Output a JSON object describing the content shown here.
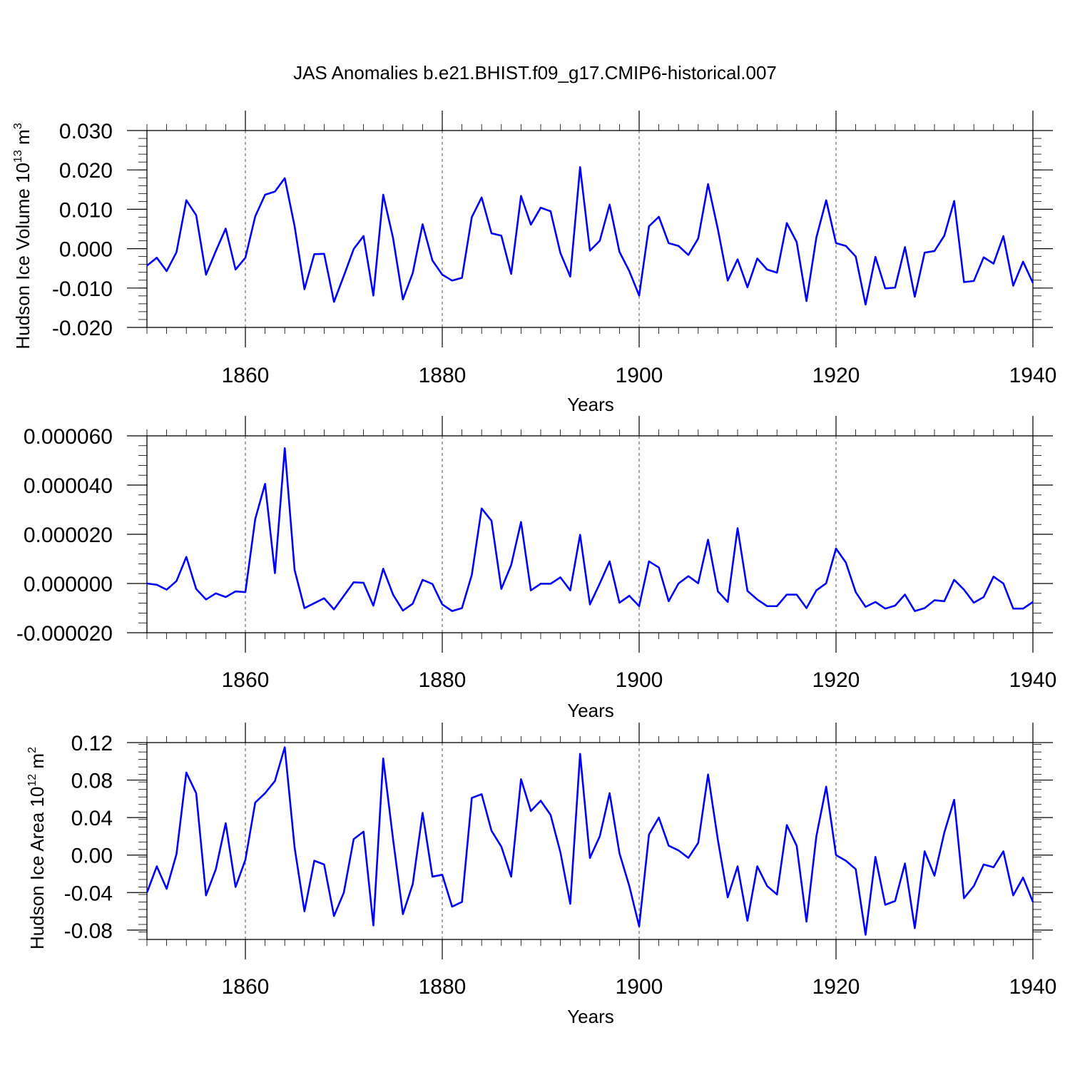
{
  "figure": {
    "title": "JAS Anomalies b.e21.BHIST.f09_g17.CMIP6-historical.007"
  },
  "chart_data": [
    {
      "type": "line",
      "title": "",
      "xlabel": "Years",
      "ylabel": "Hudson Ice Volume 10",
      "ylabel_sup": "13",
      "ylabel_unit": " m",
      "ylabel_unit_sup": "3",
      "xlim": [
        1850,
        1940
      ],
      "ylim": [
        -0.02,
        0.03
      ],
      "xticks": [
        1860,
        1880,
        1900,
        1920,
        1940
      ],
      "xtick_labels": [
        "1860",
        "1880",
        "1900",
        "1920",
        "1940"
      ],
      "yticks": [
        -0.02,
        -0.01,
        0.0,
        0.01,
        0.02,
        0.03
      ],
      "ytick_labels": [
        "-0.020",
        "-0.010",
        "0.000",
        "0.010",
        "0.020",
        "0.030"
      ],
      "grid": "vertical dashed at major x ticks",
      "color": "#0000ff",
      "series": [
        {
          "x": [
            1850,
            1851,
            1852,
            1853,
            1854,
            1855,
            1856,
            1857,
            1858,
            1859,
            1860,
            1861,
            1862,
            1863,
            1864,
            1865,
            1866,
            1867,
            1868,
            1869,
            1870,
            1871,
            1872,
            1873,
            1874,
            1875,
            1876,
            1877,
            1878,
            1879,
            1880,
            1881,
            1882,
            1883,
            1884,
            1885,
            1886,
            1887,
            1888,
            1889,
            1890,
            1891,
            1892,
            1893,
            1894,
            1895,
            1896,
            1897,
            1898,
            1899,
            1900,
            1901,
            1902,
            1903,
            1904,
            1905,
            1906,
            1907,
            1908,
            1909,
            1910,
            1911,
            1912,
            1913,
            1914,
            1915,
            1916,
            1917,
            1918,
            1919,
            1920,
            1921,
            1922,
            1923,
            1924,
            1925,
            1926,
            1927,
            1928,
            1929,
            1930,
            1931,
            1932,
            1933,
            1934,
            1935,
            1936,
            1937,
            1938,
            1939,
            1940
          ],
          "values": [
            -0.0043,
            -0.0023,
            -0.0057,
            -0.0009,
            0.0123,
            0.0085,
            -0.0066,
            -0.0006,
            0.0051,
            -0.0053,
            -0.0023,
            0.0082,
            0.0137,
            0.0145,
            0.0179,
            0.0057,
            -0.0103,
            -0.0014,
            -0.0013,
            -0.0135,
            -0.0069,
            -0.0001,
            0.0032,
            -0.0119,
            0.0137,
            0.0027,
            -0.0129,
            -0.0062,
            0.0062,
            -0.003,
            -0.0066,
            -0.0081,
            -0.0074,
            0.008,
            0.013,
            0.0039,
            0.0033,
            -0.0064,
            0.0134,
            0.0061,
            0.0104,
            0.0095,
            -0.0011,
            -0.0071,
            0.0207,
            -0.0005,
            0.002,
            0.0112,
            -0.0008,
            -0.0057,
            -0.0119,
            0.0057,
            0.0081,
            0.0014,
            0.0007,
            -0.0016,
            0.0026,
            0.0164,
            0.0049,
            -0.0081,
            -0.0027,
            -0.0098,
            -0.0025,
            -0.0053,
            -0.0061,
            0.0065,
            0.0017,
            -0.0133,
            0.0028,
            0.0123,
            0.0014,
            0.0007,
            -0.002,
            -0.0142,
            -0.0021,
            -0.0101,
            -0.0099,
            0.0004,
            -0.0122,
            -0.001,
            -0.0006,
            0.0033,
            0.0121,
            -0.0085,
            -0.0082,
            -0.0022,
            -0.0038,
            0.0032,
            -0.0094,
            -0.0033,
            -0.0087
          ]
        }
      ]
    },
    {
      "type": "line",
      "title": "",
      "xlabel": "Years",
      "ylabel": "",
      "ylabel_sup": "",
      "ylabel_unit": "",
      "ylabel_unit_sup": "",
      "xlim": [
        1850,
        1940
      ],
      "ylim": [
        -2e-05,
        6e-05
      ],
      "xticks": [
        1860,
        1880,
        1900,
        1920,
        1940
      ],
      "xtick_labels": [
        "1860",
        "1880",
        "1900",
        "1920",
        "1940"
      ],
      "yticks": [
        -2e-05,
        0.0,
        2e-05,
        4e-05,
        6e-05
      ],
      "ytick_labels": [
        "-0.000020",
        "0.000000",
        "0.000020",
        "0.000040",
        "0.000060"
      ],
      "grid": "vertical dashed at major x ticks",
      "color": "#0000ff",
      "series": [
        {
          "x": [
            1850,
            1851,
            1852,
            1853,
            1854,
            1855,
            1856,
            1857,
            1858,
            1859,
            1860,
            1861,
            1862,
            1863,
            1864,
            1865,
            1866,
            1867,
            1868,
            1869,
            1870,
            1871,
            1872,
            1873,
            1874,
            1875,
            1876,
            1877,
            1878,
            1879,
            1880,
            1881,
            1882,
            1883,
            1884,
            1885,
            1886,
            1887,
            1888,
            1889,
            1890,
            1891,
            1892,
            1893,
            1894,
            1895,
            1896,
            1897,
            1898,
            1899,
            1900,
            1901,
            1902,
            1903,
            1904,
            1905,
            1906,
            1907,
            1908,
            1909,
            1910,
            1911,
            1912,
            1913,
            1914,
            1915,
            1916,
            1917,
            1918,
            1919,
            1920,
            1921,
            1922,
            1923,
            1924,
            1925,
            1926,
            1927,
            1928,
            1929,
            1930,
            1931,
            1932,
            1933,
            1934,
            1935,
            1936,
            1937,
            1938,
            1939,
            1940
          ],
          "values": [
            0.0,
            -5e-07,
            -2.5e-06,
            1e-06,
            1.08e-05,
            -2.2e-06,
            -6.5e-06,
            -4e-06,
            -5.5e-06,
            -3.2e-06,
            -3.5e-06,
            2.62e-05,
            4.05e-05,
            4.2e-06,
            5.5e-05,
            5.5e-06,
            -1e-05,
            -8e-06,
            -6e-06,
            -1.05e-05,
            -5e-06,
            5e-07,
            3e-07,
            -9e-06,
            6e-06,
            -4.5e-06,
            -1.1e-05,
            -8.2e-06,
            1.5e-06,
            -2e-07,
            -8.5e-06,
            -1.12e-05,
            -1e-05,
            3.5e-06,
            3.05e-05,
            2.55e-05,
            -2.2e-06,
            7.5e-06,
            2.5e-05,
            -2.8e-06,
            -1e-07,
            -1e-07,
            2.5e-06,
            -2.8e-06,
            1.98e-05,
            -8.5e-06,
            0.0,
            9e-06,
            -7.8e-06,
            -5e-06,
            -9.2e-06,
            9e-06,
            6.5e-06,
            -7.2e-06,
            0.0,
            3e-06,
            1e-07,
            1.78e-05,
            -3.2e-06,
            -7.5e-06,
            2.25e-05,
            -3e-06,
            -6.5e-06,
            -9.2e-06,
            -9.2e-06,
            -4.5e-06,
            -4.5e-06,
            -1e-05,
            -2.8e-06,
            1e-07,
            1.42e-05,
            8.5e-06,
            -3.5e-06,
            -9.5e-06,
            -7.5e-06,
            -1.02e-05,
            -9e-06,
            -4.5e-06,
            -1.12e-05,
            -1e-05,
            -6.8e-06,
            -7.2e-06,
            1.5e-06,
            -2.5e-06,
            -7.8e-06,
            -5.5e-06,
            2.8e-06,
            0.0,
            -1.02e-05,
            -1.02e-05,
            -7.5e-06
          ]
        }
      ]
    },
    {
      "type": "line",
      "title": "",
      "xlabel": "Years",
      "ylabel": "Hudson Ice Area 10",
      "ylabel_sup": "12",
      "ylabel_unit": " m",
      "ylabel_unit_sup": "2",
      "xlim": [
        1850,
        1940
      ],
      "ylim": [
        -0.09,
        0.12
      ],
      "xticks": [
        1860,
        1880,
        1900,
        1920,
        1940
      ],
      "xtick_labels": [
        "1860",
        "1880",
        "1900",
        "1920",
        "1940"
      ],
      "yticks": [
        -0.08,
        -0.04,
        0.0,
        0.04,
        0.08,
        0.12
      ],
      "ytick_labels": [
        "-0.08",
        "-0.04",
        "0.00",
        "0.04",
        "0.08",
        "0.12"
      ],
      "grid": "vertical dashed at major x ticks",
      "color": "#0000ff",
      "series": [
        {
          "x": [
            1850,
            1851,
            1852,
            1853,
            1854,
            1855,
            1856,
            1857,
            1858,
            1859,
            1860,
            1861,
            1862,
            1863,
            1864,
            1865,
            1866,
            1867,
            1868,
            1869,
            1870,
            1871,
            1872,
            1873,
            1874,
            1875,
            1876,
            1877,
            1878,
            1879,
            1880,
            1881,
            1882,
            1883,
            1884,
            1885,
            1886,
            1887,
            1888,
            1889,
            1890,
            1891,
            1892,
            1893,
            1894,
            1895,
            1896,
            1897,
            1898,
            1899,
            1900,
            1901,
            1902,
            1903,
            1904,
            1905,
            1906,
            1907,
            1908,
            1909,
            1910,
            1911,
            1912,
            1913,
            1914,
            1915,
            1916,
            1917,
            1918,
            1919,
            1920,
            1921,
            1922,
            1923,
            1924,
            1925,
            1926,
            1927,
            1928,
            1929,
            1930,
            1931,
            1932,
            1933,
            1934,
            1935,
            1936,
            1937,
            1938,
            1939,
            1940
          ],
          "values": [
            -0.04,
            -0.012,
            -0.036,
            0.001,
            0.088,
            0.066,
            -0.043,
            -0.015,
            0.034,
            -0.034,
            -0.005,
            0.056,
            0.066,
            0.079,
            0.115,
            0.008,
            -0.06,
            -0.006,
            -0.01,
            -0.065,
            -0.04,
            0.017,
            0.025,
            -0.075,
            0.103,
            0.017,
            -0.063,
            -0.031,
            0.045,
            -0.023,
            -0.021,
            -0.055,
            -0.05,
            0.061,
            0.065,
            0.026,
            0.009,
            -0.023,
            0.081,
            0.047,
            0.058,
            0.043,
            0.003,
            -0.052,
            0.108,
            -0.003,
            0.02,
            0.066,
            0.002,
            -0.033,
            -0.076,
            0.022,
            0.04,
            0.01,
            0.005,
            -0.003,
            0.013,
            0.086,
            0.016,
            -0.045,
            -0.012,
            -0.07,
            -0.012,
            -0.033,
            -0.042,
            0.032,
            0.01,
            -0.071,
            0.02,
            0.073,
            0.0,
            -0.006,
            -0.015,
            -0.085,
            -0.002,
            -0.053,
            -0.049,
            -0.009,
            -0.078,
            0.004,
            -0.022,
            0.024,
            0.059,
            -0.046,
            -0.033,
            -0.01,
            -0.013,
            0.004,
            -0.043,
            -0.024,
            -0.05
          ]
        }
      ]
    }
  ]
}
